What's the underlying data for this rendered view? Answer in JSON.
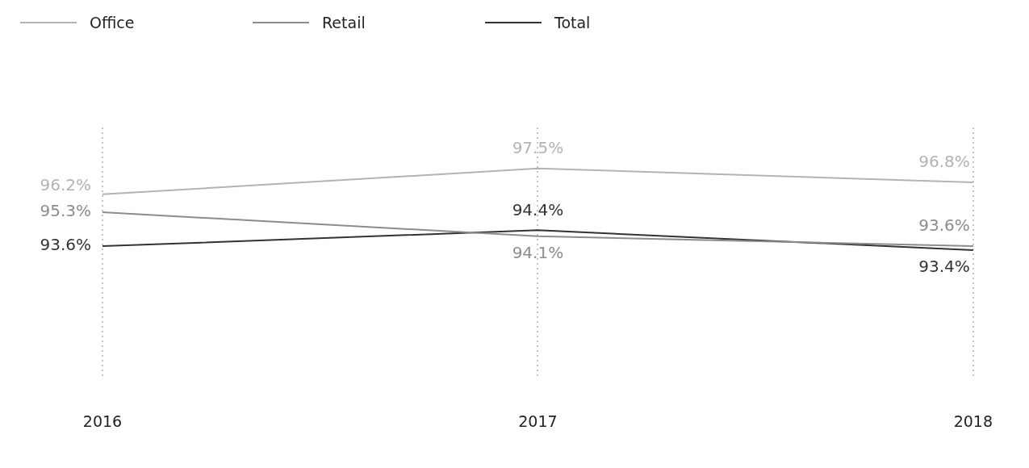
{
  "chart_data": {
    "type": "line",
    "categories": [
      "2016",
      "2017",
      "2018"
    ],
    "series": [
      {
        "name": "Office",
        "color": "#b3b3b3",
        "values": [
          96.2,
          97.5,
          96.8
        ],
        "value_labels": [
          "96.2%",
          "97.5%",
          "96.8%"
        ]
      },
      {
        "name": "Retail",
        "color": "#8c8c8c",
        "values": [
          95.3,
          94.1,
          93.6
        ],
        "value_labels": [
          "95.3%",
          "94.1%",
          "93.6%"
        ]
      },
      {
        "name": "Total",
        "color": "#333333",
        "values": [
          93.6,
          94.4,
          93.4
        ],
        "value_labels": [
          "93.6%",
          "94.4%",
          "93.4%"
        ]
      }
    ],
    "grid": "x",
    "legend": "top left",
    "marker": "none",
    "line_style": "solid"
  }
}
